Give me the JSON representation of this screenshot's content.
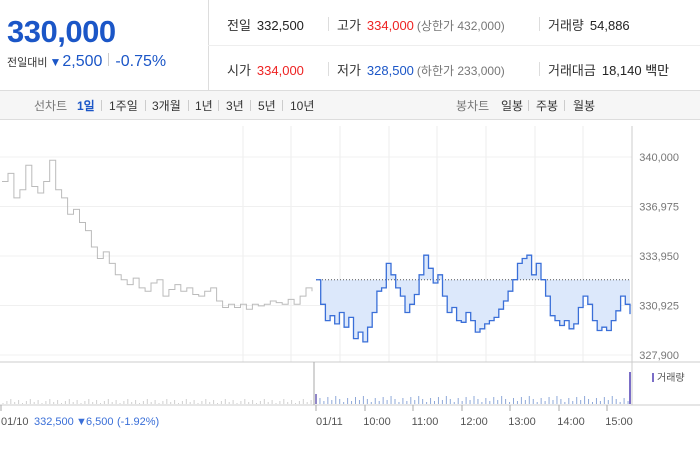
{
  "quote": {
    "current": "330,000",
    "change_label": "전일대비",
    "change_amount": "2,500",
    "change_pct": "-0.75%"
  },
  "stats": {
    "prev_close": {
      "label": "전일",
      "value": "332,500"
    },
    "high": {
      "label": "고가",
      "value": "334,000",
      "sub": "(상한가 432,000)"
    },
    "volume": {
      "label": "거래량",
      "value": "54,886"
    },
    "open": {
      "label": "시가",
      "value": "334,000"
    },
    "low": {
      "label": "저가",
      "value": "328,500",
      "sub": "(하한가 233,000)"
    },
    "turnover": {
      "label": "거래대금",
      "value": "18,140 백만"
    }
  },
  "tabs": {
    "line_label": "선차트",
    "periods": [
      "1일",
      "1주일",
      "3개월",
      "1년",
      "3년",
      "5년",
      "10년"
    ],
    "selected": "1일",
    "candle_label": "봉차트",
    "candles": [
      "일봉",
      "주봉",
      "월봉"
    ]
  },
  "colors": {
    "accent": "#1b56c7",
    "up": "#e22",
    "line": "#3a6fd8",
    "fill": "#dce8fb",
    "prev_line": "#bbbbbb"
  },
  "chart_data": {
    "type": "line",
    "ylim": [
      327900,
      340000
    ],
    "y_ticks": [
      "340,000",
      "336,975",
      "333,950",
      "330,925",
      "327,900"
    ],
    "x_ticks": [
      "10:00",
      "11:00",
      "12:00",
      "13:00",
      "14:00",
      "15:00"
    ],
    "prev_day": {
      "date": "01/10",
      "summary_price": "332,500",
      "summary_change": "6,500",
      "summary_pct": "(-1.92%)"
    },
    "today_label": "01/11",
    "volume_legend": "거래량",
    "reference_price": 332500,
    "series": [
      {
        "values": [
          338500,
          339000,
          337500,
          338000,
          339500,
          338200,
          337800,
          338500,
          339800,
          338000,
          337500,
          336500,
          336800,
          336000,
          335500,
          334500,
          333800,
          334200,
          333500,
          332800,
          332500,
          332200,
          332600,
          332000,
          331800,
          332300,
          332500,
          331500,
          331900,
          332200,
          331800,
          332000,
          331600,
          331500,
          331800,
          332000,
          331200,
          330800,
          331000,
          330800,
          331000,
          330700,
          331000,
          330900,
          331000,
          331200,
          331100,
          331000,
          331300,
          331000,
          331500,
          332000,
          331800
        ]
      },
      {
        "values": [
          332500,
          331000,
          330000,
          330300,
          329800,
          330500,
          329600,
          330200,
          328900,
          329300,
          328700,
          329600,
          330500,
          331800,
          332000,
          333500,
          332800,
          332000,
          331500,
          330500,
          331000,
          331600,
          332800,
          334000,
          333200,
          332300,
          332800,
          331500,
          330500,
          330800,
          330000,
          329900,
          330500,
          330000,
          329300,
          329500,
          329800,
          330000,
          330200,
          330700,
          331200,
          331800,
          332500,
          333500,
          333800,
          334000,
          332800,
          333500,
          332500,
          331500,
          330300,
          330000,
          329700,
          330000,
          329500,
          329800,
          330800,
          331500,
          331000,
          330000,
          329400,
          329600,
          329400,
          330000,
          330600,
          331500,
          331000,
          330400
        ]
      }
    ]
  }
}
